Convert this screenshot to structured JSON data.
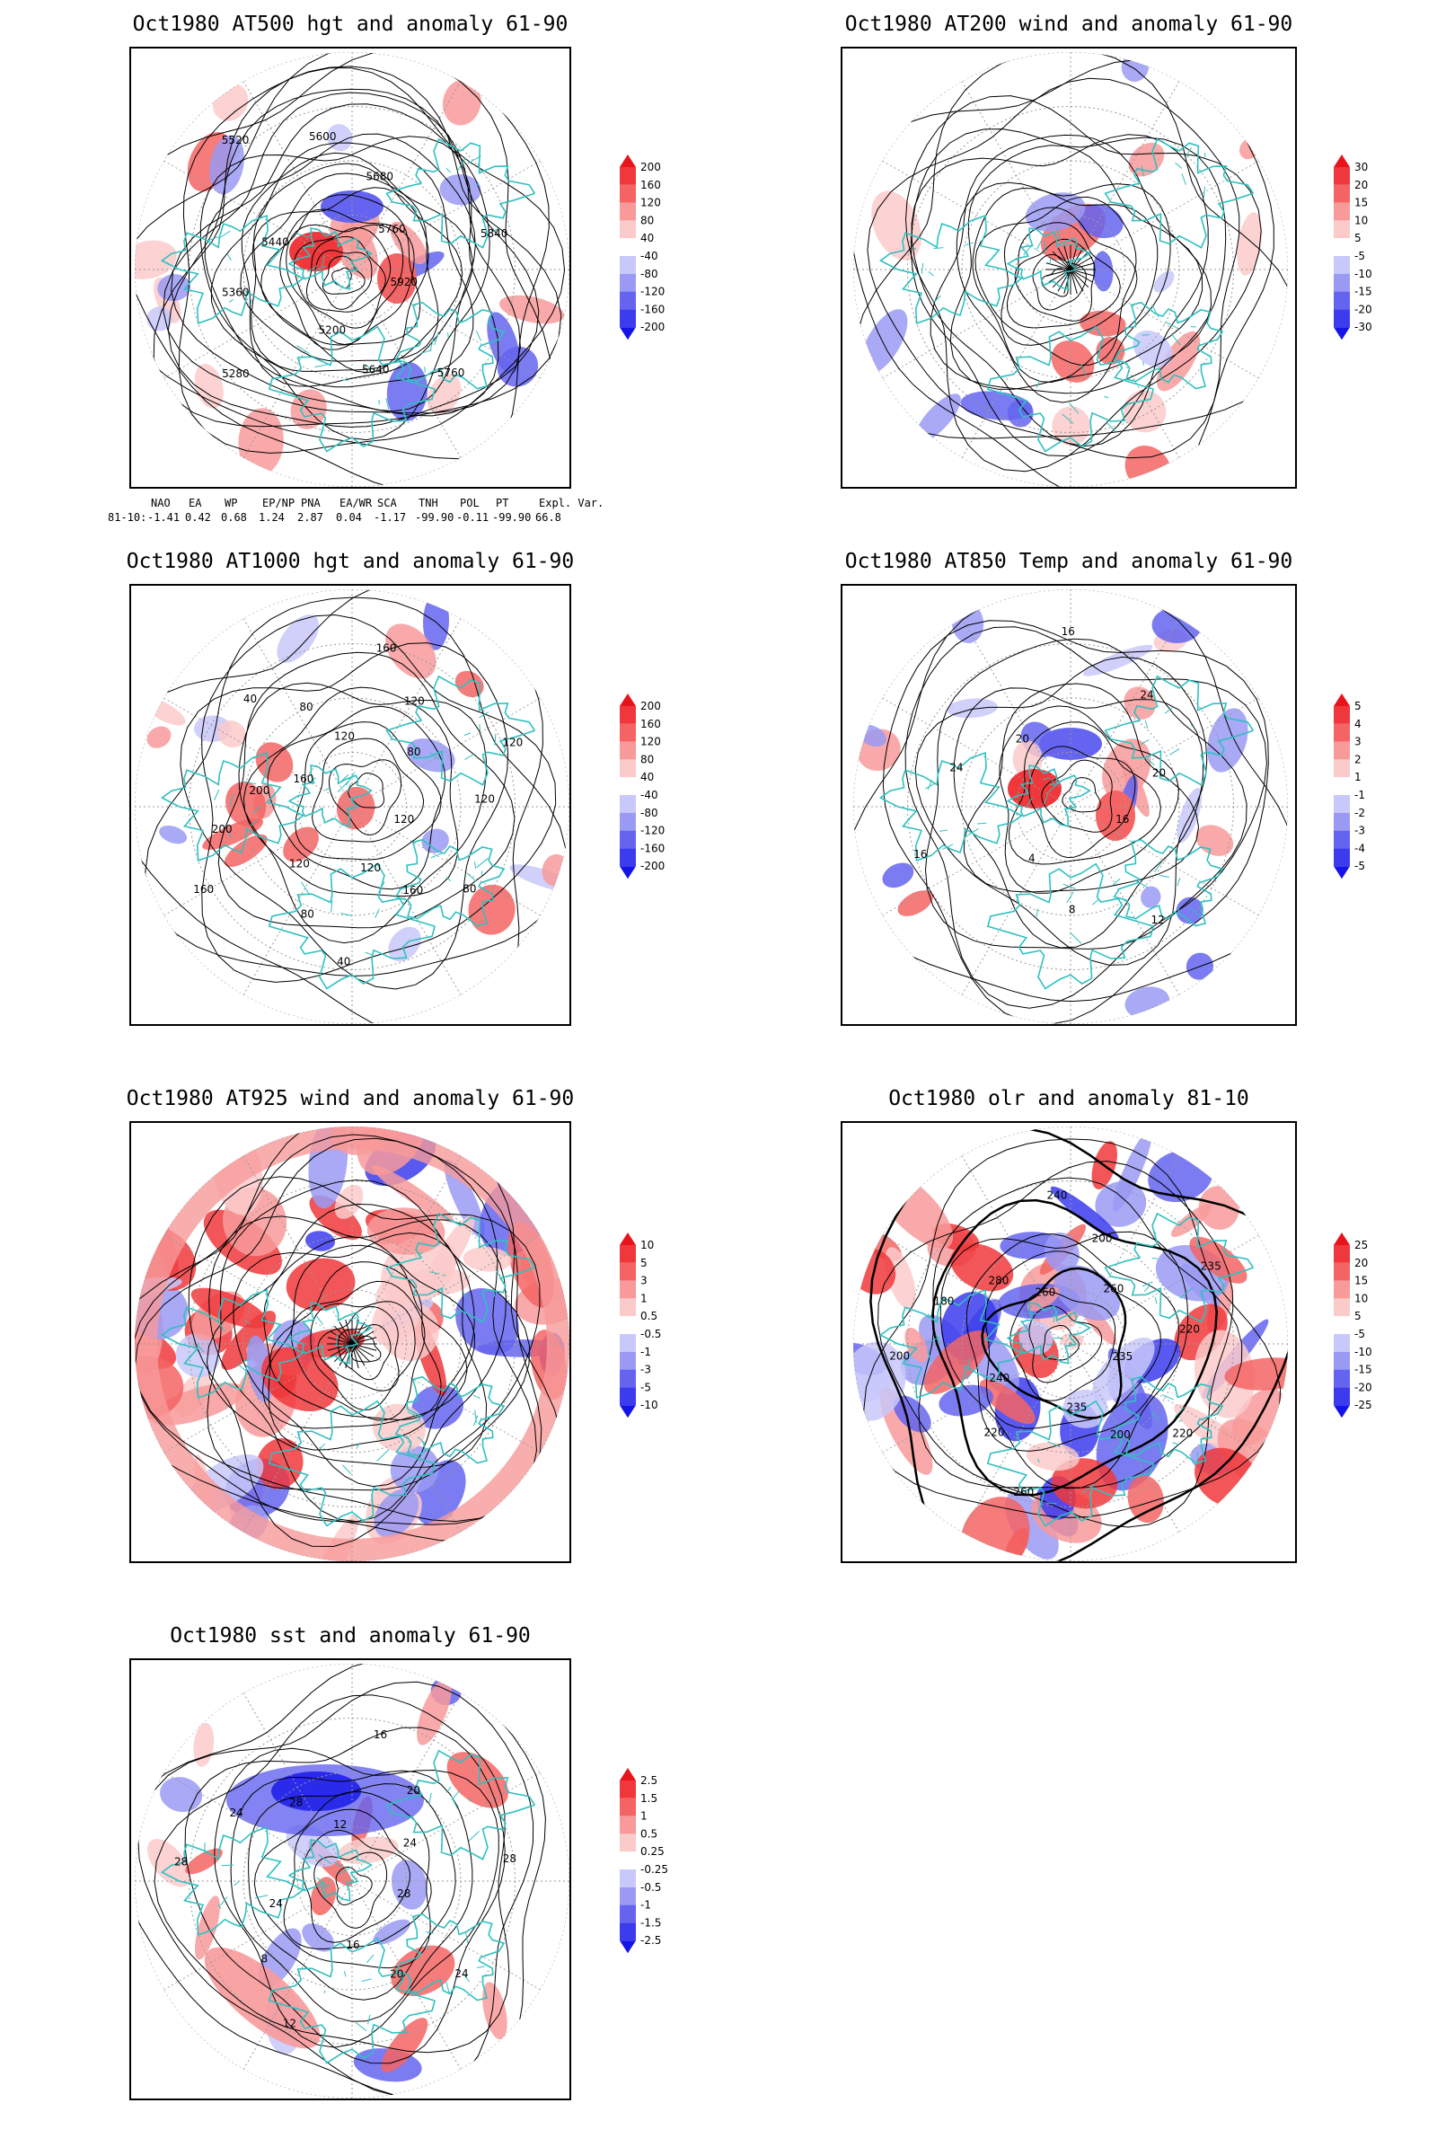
{
  "panels": [
    {
      "id": "at500",
      "title": "Oct1980 AT500 hgt and anomaly 61-90",
      "contour_labels": [
        "5920",
        "5760",
        "5640",
        "5200",
        "5280",
        "5360",
        "5440",
        "5520",
        "5600",
        "5680",
        "5760",
        "5840"
      ],
      "colorbar": [
        "200",
        "160",
        "120",
        "80",
        "40",
        "-40",
        "-80",
        "-120",
        "-160",
        "-200"
      ],
      "colors": [
        "#e8141c",
        "#f0383c",
        "#f56464",
        "#f89a9a",
        "#fbcaca",
        "#ffffff",
        "#c8c8fa",
        "#9a9af5",
        "#6464f0",
        "#3c3cee",
        "#1414e8"
      ],
      "style": "hgt"
    },
    {
      "id": "at200",
      "title": "Oct1980 AT200 wind and anomaly 61-90",
      "contour_labels": [],
      "colorbar": [
        "30",
        "20",
        "15",
        "10",
        "5",
        "-5",
        "-10",
        "-15",
        "-20",
        "-30"
      ],
      "colors": [
        "#e8141c",
        "#f0383c",
        "#f56464",
        "#f89a9a",
        "#fbcaca",
        "#ffffff",
        "#c8c8fa",
        "#9a9af5",
        "#6464f0",
        "#3c3cee",
        "#1414e8"
      ],
      "style": "wind"
    },
    {
      "id": "at1000",
      "title": "Oct1980 AT1000 hgt and anomaly 61-90",
      "contour_labels": [
        "120",
        "80",
        "160",
        "120",
        "40",
        "80",
        "120",
        "160",
        "200",
        "200",
        "160",
        "40",
        "80",
        "120",
        "160",
        "120",
        "80",
        "120",
        "120"
      ],
      "colorbar": [
        "200",
        "160",
        "120",
        "80",
        "40",
        "-40",
        "-80",
        "-120",
        "-160",
        "-200"
      ],
      "colors": [
        "#e8141c",
        "#f0383c",
        "#f56464",
        "#f89a9a",
        "#fbcaca",
        "#ffffff",
        "#c8c8fa",
        "#9a9af5",
        "#6464f0",
        "#3c3cee",
        "#1414e8"
      ],
      "style": "hgt1000"
    },
    {
      "id": "at850",
      "title": "Oct1980 AT850 Temp and anomaly 61-90",
      "contour_labels": [
        "16",
        "12",
        "8",
        "4",
        "16",
        "24",
        "20",
        "16",
        "24",
        "20"
      ],
      "colorbar": [
        "5",
        "4",
        "3",
        "2",
        "1",
        "-1",
        "-2",
        "-3",
        "-4",
        "-5"
      ],
      "colors": [
        "#e8141c",
        "#f0383c",
        "#f56464",
        "#f89a9a",
        "#fbcaca",
        "#ffffff",
        "#c8c8fa",
        "#9a9af5",
        "#6464f0",
        "#3c3cee",
        "#1414e8"
      ],
      "style": "temp"
    },
    {
      "id": "at925",
      "title": "Oct1980 AT925 wind and anomaly 61-90",
      "contour_labels": [],
      "colorbar": [
        "10",
        "5",
        "3",
        "1",
        "0.5",
        "-0.5",
        "-1",
        "-3",
        "-5",
        "-10"
      ],
      "colors": [
        "#e8141c",
        "#f0383c",
        "#f56464",
        "#f89a9a",
        "#fbcaca",
        "#ffffff",
        "#c8c8fa",
        "#9a9af5",
        "#6464f0",
        "#3c3cee",
        "#1414e8"
      ],
      "style": "wind925"
    },
    {
      "id": "olr",
      "title": "Oct1980 olr and anomaly 81-10",
      "contour_labels": [
        "235",
        "220",
        "200",
        "235",
        "260",
        "220",
        "240",
        "200",
        "180",
        "280",
        "260",
        "240",
        "200",
        "260",
        "235",
        "220"
      ],
      "colorbar": [
        "25",
        "20",
        "15",
        "10",
        "5",
        "-5",
        "-10",
        "-15",
        "-20",
        "-25"
      ],
      "colors": [
        "#e8141c",
        "#f0383c",
        "#f56464",
        "#f89a9a",
        "#fbcaca",
        "#ffffff",
        "#c8c8fa",
        "#9a9af5",
        "#6464f0",
        "#3c3cee",
        "#1414e8"
      ],
      "style": "olr"
    },
    {
      "id": "sst",
      "title": "Oct1980 sst and anomaly 61-90",
      "contour_labels": [
        "28",
        "24",
        "20",
        "16",
        "12",
        "8",
        "24",
        "28",
        "24",
        "28",
        "12",
        "16",
        "20",
        "24",
        "28"
      ],
      "colorbar": [
        "2.5",
        "1.5",
        "1",
        "0.5",
        "0.25",
        "-0.25",
        "-0.5",
        "-1",
        "-1.5",
        "-2.5"
      ],
      "colors": [
        "#e8141c",
        "#f0383c",
        "#f56464",
        "#f89a9a",
        "#fbcaca",
        "#ffffff",
        "#c8c8fa",
        "#9a9af5",
        "#6464f0",
        "#3c3cee",
        "#1414e8"
      ],
      "style": "sst"
    }
  ],
  "indices": {
    "headers": [
      "NAO",
      "EA",
      "WP",
      "EP/NP",
      "PNA",
      "EA/WR",
      "SCA",
      "TNH",
      "POL",
      "PT",
      "Expl. Var."
    ],
    "row_label": "81-10:",
    "values": [
      "-1.41",
      "0.42",
      "0.68",
      "1.24",
      "2.87",
      "0.04",
      "-1.17",
      "-99.90",
      "-0.11",
      "-99.90",
      "66.8"
    ]
  },
  "coast_color": "#30c0c0"
}
